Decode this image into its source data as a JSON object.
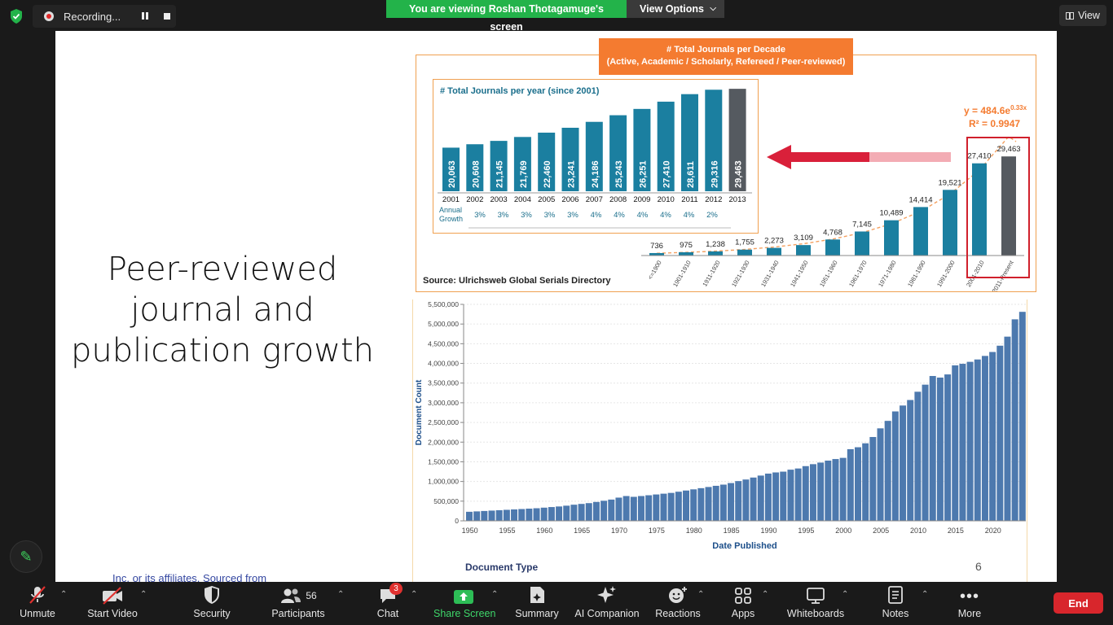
{
  "topbar": {
    "recording_label": "Recording...",
    "viewing_banner": "You are viewing Roshan Thotagamuge's screen",
    "view_options_label": "View Options",
    "view_label": "View"
  },
  "slide": {
    "title_lines": [
      "Peer-reviewed",
      "journal and",
      "publication  growth"
    ],
    "decade_title_1": "# Total Journals per Decade",
    "decade_title_2": "(Active, Academic / Scholarly, Refereed / Peer-reviewed)",
    "source": "Source: Ulrichsweb Global Serials Directory",
    "doc_type_label": "Document Type",
    "page_number": "6",
    "footer_text": "Inc. or its affiliates. Sourced from Elsevier"
  },
  "chart_data": [
    {
      "type": "bar",
      "title": "# Total Journals per year (since 2001)",
      "categories": [
        "2001",
        "2002",
        "2003",
        "2004",
        "2005",
        "2006",
        "2007",
        "2008",
        "2009",
        "2010",
        "2011",
        "2012",
        "2013"
      ],
      "values": [
        20063,
        20608,
        21145,
        21769,
        22460,
        23241,
        24186,
        25243,
        26251,
        27410,
        28611,
        29316,
        29463
      ],
      "value_labels": [
        "20,063",
        "20,608",
        "21,145",
        "21,769",
        "22,460",
        "23,241",
        "24,186",
        "25,243",
        "26,251",
        "27,410",
        "28,611",
        "29,316",
        "29,463"
      ],
      "growth_label_1": "Annual",
      "growth_label_2": "Growth",
      "annual_growth": [
        "3%",
        "3%",
        "3%",
        "3%",
        "3%",
        "4%",
        "4%",
        "4%",
        "4%",
        "4%",
        "2%"
      ],
      "colors": {
        "bar": "#1b7fa0",
        "last": "#555a60"
      }
    },
    {
      "type": "bar",
      "title": "# Total Journals per Decade",
      "categories": [
        "<=1900",
        "1901-1910",
        "1911-1920",
        "1921-1930",
        "1931-1940",
        "1941-1950",
        "1951-1960",
        "1961-1970",
        "1971-1980",
        "1981-1990",
        "1991-2000",
        "2001-2010",
        "2011-Present"
      ],
      "values": [
        736,
        975,
        1238,
        1755,
        2273,
        3109,
        4768,
        7145,
        10489,
        14414,
        19521,
        27410,
        29463
      ],
      "value_labels": [
        "736",
        "975",
        "1,238",
        "1,755",
        "2,273",
        "3,109",
        "4,768",
        "7,145",
        "10,489",
        "14,414",
        "19,521",
        "27,410",
        "29,463"
      ],
      "annotation_1": "y = 484.6e",
      "annotation_1_exp": "0.33x",
      "annotation_2": "R² = 0.9947",
      "colors": {
        "bar": "#1b7fa0",
        "last": "#555a60",
        "trend": "#f4a060",
        "highlight": "#d0202c"
      }
    },
    {
      "type": "bar",
      "xlabel": "Date Published",
      "ylabel": "Document Count",
      "ylim": [
        0,
        5500000
      ],
      "yticks": [
        "0",
        "500,000",
        "1,000,000",
        "1,500,000",
        "2,000,000",
        "2,500,000",
        "3,000,000",
        "3,500,000",
        "4,000,000",
        "4,500,000",
        "5,000,000",
        "5,500,000"
      ],
      "xticks": [
        "1950",
        "1955",
        "1960",
        "1965",
        "1970",
        "1975",
        "1980",
        "1985",
        "1990",
        "1995",
        "2000",
        "2005",
        "2010",
        "2015",
        "2020"
      ],
      "x_start": 1950,
      "values": [
        230000,
        240000,
        250000,
        260000,
        270000,
        280000,
        290000,
        300000,
        310000,
        320000,
        335000,
        350000,
        365000,
        385000,
        410000,
        430000,
        450000,
        480000,
        510000,
        540000,
        590000,
        630000,
        610000,
        630000,
        650000,
        670000,
        690000,
        710000,
        740000,
        770000,
        800000,
        830000,
        860000,
        890000,
        920000,
        960000,
        1010000,
        1050000,
        1100000,
        1150000,
        1200000,
        1230000,
        1250000,
        1300000,
        1330000,
        1390000,
        1440000,
        1480000,
        1530000,
        1570000,
        1600000,
        1820000,
        1870000,
        1970000,
        2130000,
        2350000,
        2540000,
        2780000,
        2930000,
        3070000,
        3280000,
        3460000,
        3680000,
        3640000,
        3720000,
        3950000,
        3990000,
        4040000,
        4100000,
        4190000,
        4290000,
        4450000,
        4680000,
        5120000,
        5310000
      ],
      "colors": {
        "bar": "#4d79ae",
        "axis_title": "#1d4f8a"
      }
    }
  ],
  "toolbar": {
    "items": [
      {
        "label": "Unmute",
        "icon": "mic-muted-icon"
      },
      {
        "label": "Start Video",
        "icon": "video-off-icon"
      },
      {
        "label": "Security",
        "icon": "shield-icon"
      },
      {
        "label": "Participants",
        "icon": "participants-icon",
        "count": "56"
      },
      {
        "label": "Chat",
        "icon": "chat-icon",
        "badge": "3"
      },
      {
        "label": "Share Screen",
        "icon": "share-screen-icon"
      },
      {
        "label": "Summary",
        "icon": "summary-icon"
      },
      {
        "label": "AI Companion",
        "icon": "ai-companion-icon"
      },
      {
        "label": "Reactions",
        "icon": "reactions-icon"
      },
      {
        "label": "Apps",
        "icon": "apps-icon"
      },
      {
        "label": "Whiteboards",
        "icon": "whiteboard-icon"
      },
      {
        "label": "Notes",
        "icon": "notes-icon"
      },
      {
        "label": "More",
        "icon": "more-icon"
      }
    ],
    "end_label": "End",
    "share_color": "#2dbd56"
  }
}
